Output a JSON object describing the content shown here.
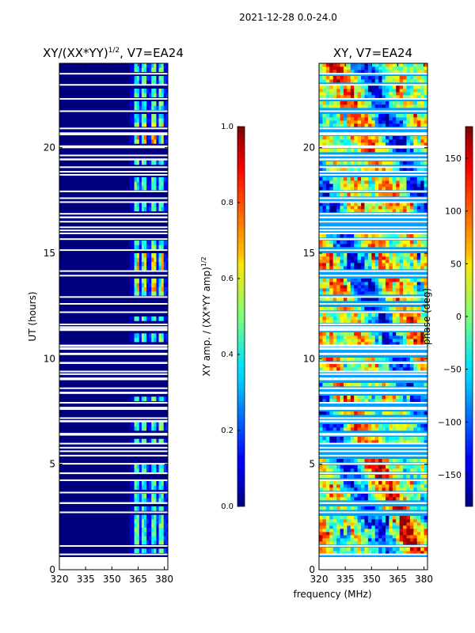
{
  "figure": {
    "suptitle": "2021-12-28 0.0-24.0",
    "shared_xlabel": "frequency (MHz)"
  },
  "chart_data": [
    {
      "type": "heatmap",
      "name": "amplitude",
      "title_main": "XY/(XX*YY)",
      "title_exp": "1/2",
      "title_tail": ", V7=EA24",
      "ylabel": "UT (hours)",
      "xlim": [
        320,
        382
      ],
      "ylim": [
        0,
        24
      ],
      "xticks": [
        320,
        335,
        350,
        365,
        380
      ],
      "yticks": [
        0,
        5,
        10,
        15,
        20
      ],
      "data_start_freq": 360,
      "bright_channels": [
        364,
        368,
        373,
        378
      ],
      "notes": "dark blue background (0) below ~360 MHz; bright channels 0.3-0.7 above 360 MHz; horizontal white gaps = flagged data",
      "colorbar": {
        "range": [
          0,
          1
        ],
        "ticks": [
          "0.0",
          "0.2",
          "0.4",
          "0.6",
          "0.8",
          "1.0"
        ],
        "label_main": "XY amp. / (XX*YY amp)",
        "label_exp": "1/2"
      }
    },
    {
      "type": "heatmap",
      "name": "phase",
      "title": "XY, V7=EA24",
      "xlim": [
        320,
        382
      ],
      "ylim": [
        0,
        24
      ],
      "xticks": [
        320,
        335,
        350,
        365,
        380
      ],
      "yticks": [
        0,
        5,
        10,
        15,
        20
      ],
      "colorbar": {
        "range": [
          -180,
          180
        ],
        "ticks": [
          "150",
          "100",
          "50",
          "0",
          "−50",
          "−100",
          "−150"
        ],
        "tick_values": [
          150,
          100,
          50,
          0,
          -50,
          -100,
          -150
        ],
        "label": "phase (deg)"
      }
    }
  ]
}
